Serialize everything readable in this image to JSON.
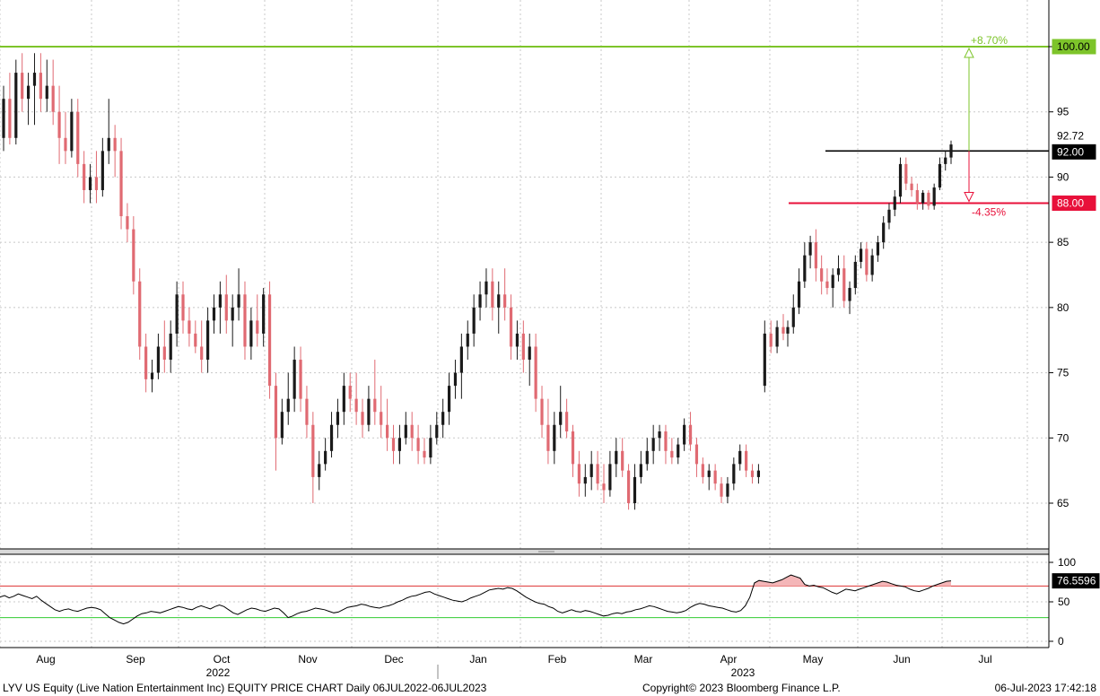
{
  "chart_data": {
    "type": "candlestick",
    "price_axis": {
      "ticks": [
        65,
        70,
        75,
        80,
        85,
        90,
        95,
        100
      ],
      "range": [
        61,
        104
      ]
    },
    "rsi_axis": {
      "ticks": [
        0,
        50,
        100
      ],
      "range": [
        -10,
        107
      ]
    },
    "months": [
      "Aug",
      "Sep",
      "Oct",
      "Nov",
      "Dec",
      "Jan",
      "Feb",
      "Mar",
      "Apr",
      "May",
      "Jun",
      "Jul"
    ],
    "years": [
      "2022",
      "2023"
    ],
    "levels": {
      "resistance": {
        "value": 100,
        "label": "100.00",
        "pct": "+8.70%",
        "color": "#7dc42a"
      },
      "black_line": {
        "value": 92,
        "label": "92.00",
        "color": "#000000"
      },
      "support": {
        "value": 88,
        "label": "88.00",
        "pct": "-4.35%",
        "color": "#e8103a"
      },
      "last_price_label": "92.72"
    },
    "rsi": {
      "last_label": "76.5596",
      "upper": 70,
      "lower": 30,
      "upper_color": "#d33",
      "lower_color": "#3c3"
    },
    "candles": [
      {
        "o": 93,
        "h": 97,
        "l": 92,
        "c": 96
      },
      {
        "o": 96,
        "h": 98,
        "l": 92.5,
        "c": 93
      },
      {
        "o": 93,
        "h": 99,
        "l": 92.5,
        "c": 98
      },
      {
        "o": 98,
        "h": 99.5,
        "l": 95,
        "c": 96
      },
      {
        "o": 96,
        "h": 98,
        "l": 94,
        "c": 97
      },
      {
        "o": 97,
        "h": 99.5,
        "l": 94,
        "c": 98
      },
      {
        "o": 98,
        "h": 99.5,
        "l": 95,
        "c": 96
      },
      {
        "o": 96,
        "h": 99,
        "l": 95,
        "c": 97
      },
      {
        "o": 97,
        "h": 99,
        "l": 94,
        "c": 95
      },
      {
        "o": 95,
        "h": 97,
        "l": 91,
        "c": 93
      },
      {
        "o": 93,
        "h": 95,
        "l": 91,
        "c": 92
      },
      {
        "o": 92,
        "h": 96,
        "l": 91.5,
        "c": 95
      },
      {
        "o": 95,
        "h": 96,
        "l": 90,
        "c": 91
      },
      {
        "o": 91,
        "h": 92,
        "l": 88,
        "c": 89
      },
      {
        "o": 89,
        "h": 91,
        "l": 88,
        "c": 90
      },
      {
        "o": 90,
        "h": 92,
        "l": 88,
        "c": 89
      },
      {
        "o": 89,
        "h": 93,
        "l": 88.5,
        "c": 92
      },
      {
        "o": 92,
        "h": 96,
        "l": 91,
        "c": 93
      },
      {
        "o": 93,
        "h": 94,
        "l": 90,
        "c": 92
      },
      {
        "o": 92,
        "h": 93,
        "l": 86,
        "c": 87
      },
      {
        "o": 87,
        "h": 88,
        "l": 85,
        "c": 86
      },
      {
        "o": 86,
        "h": 87,
        "l": 81,
        "c": 82
      },
      {
        "o": 82,
        "h": 83,
        "l": 76,
        "c": 77
      },
      {
        "o": 77,
        "h": 78,
        "l": 73.5,
        "c": 74.5
      },
      {
        "o": 74.5,
        "h": 76,
        "l": 73.5,
        "c": 75
      },
      {
        "o": 75,
        "h": 78,
        "l": 74.5,
        "c": 77
      },
      {
        "o": 77,
        "h": 79,
        "l": 75,
        "c": 76
      },
      {
        "o": 76,
        "h": 79,
        "l": 75,
        "c": 78
      },
      {
        "o": 78,
        "h": 82,
        "l": 77,
        "c": 81
      },
      {
        "o": 81,
        "h": 82,
        "l": 78,
        "c": 79
      },
      {
        "o": 79,
        "h": 80,
        "l": 77,
        "c": 78
      },
      {
        "o": 78,
        "h": 79,
        "l": 76.5,
        "c": 77
      },
      {
        "o": 77,
        "h": 79,
        "l": 75,
        "c": 76
      },
      {
        "o": 76,
        "h": 80,
        "l": 75,
        "c": 79
      },
      {
        "o": 79,
        "h": 81,
        "l": 78,
        "c": 80
      },
      {
        "o": 80,
        "h": 82,
        "l": 78,
        "c": 81
      },
      {
        "o": 81,
        "h": 82.5,
        "l": 78,
        "c": 79
      },
      {
        "o": 79,
        "h": 81,
        "l": 77,
        "c": 80
      },
      {
        "o": 80,
        "h": 83,
        "l": 79,
        "c": 81
      },
      {
        "o": 81,
        "h": 82,
        "l": 76,
        "c": 77
      },
      {
        "o": 77,
        "h": 80,
        "l": 76,
        "c": 79
      },
      {
        "o": 79,
        "h": 81,
        "l": 77,
        "c": 78
      },
      {
        "o": 78,
        "h": 81.5,
        "l": 77,
        "c": 81
      },
      {
        "o": 81,
        "h": 82,
        "l": 73,
        "c": 74
      },
      {
        "o": 74,
        "h": 75,
        "l": 67.5,
        "c": 70
      },
      {
        "o": 70,
        "h": 73,
        "l": 69.5,
        "c": 72
      },
      {
        "o": 72,
        "h": 75,
        "l": 71,
        "c": 73
      },
      {
        "o": 73,
        "h": 77,
        "l": 72,
        "c": 76
      },
      {
        "o": 76,
        "h": 77,
        "l": 72,
        "c": 73
      },
      {
        "o": 73,
        "h": 74,
        "l": 70,
        "c": 71
      },
      {
        "o": 71,
        "h": 72,
        "l": 65,
        "c": 67
      },
      {
        "o": 67,
        "h": 69,
        "l": 66,
        "c": 68
      },
      {
        "o": 68,
        "h": 70,
        "l": 67.5,
        "c": 69
      },
      {
        "o": 69,
        "h": 72,
        "l": 68.5,
        "c": 71
      },
      {
        "o": 71,
        "h": 73,
        "l": 70,
        "c": 72
      },
      {
        "o": 72,
        "h": 75,
        "l": 71,
        "c": 74
      },
      {
        "o": 74,
        "h": 75,
        "l": 72,
        "c": 73
      },
      {
        "o": 73,
        "h": 75,
        "l": 71,
        "c": 72
      },
      {
        "o": 72,
        "h": 73,
        "l": 70,
        "c": 71
      },
      {
        "o": 71,
        "h": 74,
        "l": 70.5,
        "c": 73
      },
      {
        "o": 73,
        "h": 76,
        "l": 71,
        "c": 72
      },
      {
        "o": 72,
        "h": 74,
        "l": 70,
        "c": 71
      },
      {
        "o": 71,
        "h": 73,
        "l": 69,
        "c": 70
      },
      {
        "o": 70,
        "h": 71,
        "l": 68,
        "c": 69
      },
      {
        "o": 69,
        "h": 71,
        "l": 68,
        "c": 70
      },
      {
        "o": 70,
        "h": 72,
        "l": 69.5,
        "c": 71
      },
      {
        "o": 71,
        "h": 72,
        "l": 69,
        "c": 70
      },
      {
        "o": 70,
        "h": 71,
        "l": 68,
        "c": 69
      },
      {
        "o": 69,
        "h": 70,
        "l": 68,
        "c": 68.5
      },
      {
        "o": 68.5,
        "h": 71,
        "l": 68,
        "c": 70
      },
      {
        "o": 70,
        "h": 72,
        "l": 69.5,
        "c": 71
      },
      {
        "o": 71,
        "h": 73,
        "l": 70,
        "c": 72
      },
      {
        "o": 72,
        "h": 75,
        "l": 71,
        "c": 74
      },
      {
        "o": 74,
        "h": 76,
        "l": 73,
        "c": 75
      },
      {
        "o": 75,
        "h": 78,
        "l": 73,
        "c": 77
      },
      {
        "o": 77,
        "h": 79,
        "l": 76,
        "c": 78
      },
      {
        "o": 78,
        "h": 81,
        "l": 77,
        "c": 80
      },
      {
        "o": 80,
        "h": 82,
        "l": 79,
        "c": 81
      },
      {
        "o": 81,
        "h": 83,
        "l": 80,
        "c": 82
      },
      {
        "o": 82,
        "h": 83,
        "l": 79,
        "c": 80
      },
      {
        "o": 80,
        "h": 82,
        "l": 78,
        "c": 81
      },
      {
        "o": 81,
        "h": 83,
        "l": 79,
        "c": 80
      },
      {
        "o": 80,
        "h": 81,
        "l": 76,
        "c": 77
      },
      {
        "o": 77,
        "h": 79,
        "l": 76,
        "c": 78
      },
      {
        "o": 78,
        "h": 79,
        "l": 75,
        "c": 76
      },
      {
        "o": 76,
        "h": 78,
        "l": 74,
        "c": 77
      },
      {
        "o": 77,
        "h": 78,
        "l": 72,
        "c": 73
      },
      {
        "o": 73,
        "h": 74,
        "l": 70,
        "c": 71
      },
      {
        "o": 71,
        "h": 73,
        "l": 68,
        "c": 69
      },
      {
        "o": 69,
        "h": 72,
        "l": 68,
        "c": 71
      },
      {
        "o": 71,
        "h": 74,
        "l": 70,
        "c": 72
      },
      {
        "o": 72,
        "h": 73,
        "l": 70,
        "c": 70.5
      },
      {
        "o": 70.5,
        "h": 71,
        "l": 67,
        "c": 68
      },
      {
        "o": 68,
        "h": 69,
        "l": 65.5,
        "c": 66.5
      },
      {
        "o": 66.5,
        "h": 68,
        "l": 65.5,
        "c": 67
      },
      {
        "o": 67,
        "h": 69,
        "l": 66,
        "c": 68
      },
      {
        "o": 68,
        "h": 69,
        "l": 66,
        "c": 66.5
      },
      {
        "o": 66.5,
        "h": 68,
        "l": 65,
        "c": 66
      },
      {
        "o": 66,
        "h": 69,
        "l": 65.5,
        "c": 68
      },
      {
        "o": 68,
        "h": 70,
        "l": 67,
        "c": 69
      },
      {
        "o": 69,
        "h": 70,
        "l": 67,
        "c": 67.5
      },
      {
        "o": 67.5,
        "h": 68,
        "l": 64.5,
        "c": 65
      },
      {
        "o": 65,
        "h": 68,
        "l": 64.5,
        "c": 67
      },
      {
        "o": 67,
        "h": 69,
        "l": 66.5,
        "c": 68
      },
      {
        "o": 68,
        "h": 70,
        "l": 67.5,
        "c": 69
      },
      {
        "o": 69,
        "h": 71,
        "l": 68,
        "c": 70
      },
      {
        "o": 70,
        "h": 71,
        "l": 69,
        "c": 70.5
      },
      {
        "o": 70.5,
        "h": 71,
        "l": 68,
        "c": 69
      },
      {
        "o": 69,
        "h": 70,
        "l": 68,
        "c": 68.5
      },
      {
        "o": 68.5,
        "h": 70,
        "l": 68,
        "c": 69.5
      },
      {
        "o": 69.5,
        "h": 71.5,
        "l": 69,
        "c": 71
      },
      {
        "o": 71,
        "h": 72,
        "l": 69,
        "c": 69.5
      },
      {
        "o": 69.5,
        "h": 70,
        "l": 67,
        "c": 68
      },
      {
        "o": 68,
        "h": 68.5,
        "l": 66.5,
        "c": 67
      },
      {
        "o": 67,
        "h": 68,
        "l": 66,
        "c": 67.5
      },
      {
        "o": 67.5,
        "h": 68,
        "l": 66,
        "c": 66.5
      },
      {
        "o": 66.5,
        "h": 67,
        "l": 65,
        "c": 65.5
      },
      {
        "o": 65.5,
        "h": 67,
        "l": 65,
        "c": 66.5
      },
      {
        "o": 66.5,
        "h": 68.5,
        "l": 66,
        "c": 68
      },
      {
        "o": 68,
        "h": 69.5,
        "l": 67.5,
        "c": 69
      },
      {
        "o": 69,
        "h": 69.5,
        "l": 67,
        "c": 67.5
      },
      {
        "o": 67.5,
        "h": 68,
        "l": 66.5,
        "c": 67
      },
      {
        "o": 67,
        "h": 68,
        "l": 66.5,
        "c": 67.5
      },
      {
        "o": 74,
        "h": 79,
        "l": 73.5,
        "c": 78
      },
      {
        "o": 78,
        "h": 79,
        "l": 76.5,
        "c": 77
      },
      {
        "o": 77,
        "h": 79,
        "l": 76.5,
        "c": 78.5
      },
      {
        "o": 78.5,
        "h": 79.5,
        "l": 77.5,
        "c": 78
      },
      {
        "o": 78,
        "h": 79,
        "l": 77,
        "c": 78.5
      },
      {
        "o": 78.5,
        "h": 81,
        "l": 78,
        "c": 80
      },
      {
        "o": 80,
        "h": 83,
        "l": 79.5,
        "c": 82
      },
      {
        "o": 82,
        "h": 85,
        "l": 81.5,
        "c": 84
      },
      {
        "o": 84,
        "h": 85.5,
        "l": 83,
        "c": 85
      },
      {
        "o": 85,
        "h": 86,
        "l": 82,
        "c": 83
      },
      {
        "o": 83,
        "h": 84,
        "l": 81,
        "c": 82
      },
      {
        "o": 82,
        "h": 83,
        "l": 81,
        "c": 81.5
      },
      {
        "o": 81.5,
        "h": 83,
        "l": 80,
        "c": 82.5
      },
      {
        "o": 82.5,
        "h": 84,
        "l": 82,
        "c": 83
      },
      {
        "o": 83,
        "h": 84,
        "l": 80,
        "c": 80.5
      },
      {
        "o": 80.5,
        "h": 82,
        "l": 79.5,
        "c": 81.5
      },
      {
        "o": 81.5,
        "h": 84,
        "l": 81,
        "c": 83.5
      },
      {
        "o": 83.5,
        "h": 85,
        "l": 83,
        "c": 84.5
      },
      {
        "o": 84.5,
        "h": 85,
        "l": 82,
        "c": 82.5
      },
      {
        "o": 82.5,
        "h": 84.5,
        "l": 82,
        "c": 84
      },
      {
        "o": 84,
        "h": 85.5,
        "l": 83.5,
        "c": 85
      },
      {
        "o": 85,
        "h": 87,
        "l": 84.5,
        "c": 86.5
      },
      {
        "o": 86.5,
        "h": 88,
        "l": 86,
        "c": 87.5
      },
      {
        "o": 87.5,
        "h": 89,
        "l": 87,
        "c": 88.5
      },
      {
        "o": 88.5,
        "h": 91.5,
        "l": 88,
        "c": 91
      },
      {
        "o": 91,
        "h": 91.5,
        "l": 89,
        "c": 89.5
      },
      {
        "o": 89.5,
        "h": 90,
        "l": 88.5,
        "c": 89
      },
      {
        "o": 89,
        "h": 89.5,
        "l": 87.5,
        "c": 88
      },
      {
        "o": 88,
        "h": 89,
        "l": 87.5,
        "c": 88.8
      },
      {
        "o": 88.8,
        "h": 89,
        "l": 87.5,
        "c": 87.8
      },
      {
        "o": 87.8,
        "h": 89.5,
        "l": 87.5,
        "c": 89.2
      },
      {
        "o": 89.2,
        "h": 91.5,
        "l": 89,
        "c": 91
      },
      {
        "o": 91,
        "h": 92,
        "l": 90.5,
        "c": 91.5
      },
      {
        "o": 91.5,
        "h": 92.8,
        "l": 91,
        "c": 92.5
      }
    ],
    "rsi_values": [
      56,
      58,
      55,
      57,
      60,
      58,
      56,
      54,
      57,
      52,
      48,
      44,
      40,
      38,
      40,
      41,
      39,
      38,
      40,
      42,
      43,
      42,
      40,
      35,
      30,
      27,
      24,
      22,
      24,
      28,
      32,
      35,
      36,
      38,
      37,
      36,
      38,
      40,
      42,
      44,
      43,
      41,
      40,
      43,
      45,
      43,
      41,
      44,
      46,
      44,
      40,
      36,
      34,
      37,
      40,
      42,
      41,
      39,
      38,
      40,
      42,
      41,
      36,
      30,
      32,
      35,
      37,
      38,
      40,
      42,
      41,
      40,
      38,
      36,
      37,
      40,
      43,
      44,
      45,
      47,
      46,
      44,
      43,
      42,
      44,
      45,
      47,
      50,
      52,
      55,
      57,
      58,
      60,
      62,
      63,
      60,
      58,
      56,
      54,
      52,
      51,
      50,
      52,
      55,
      57,
      59,
      62,
      65,
      66,
      67,
      66,
      68,
      67,
      64,
      60,
      56,
      53,
      50,
      48,
      47,
      44,
      42,
      38,
      36,
      38,
      40,
      38,
      37,
      39,
      38,
      36,
      34,
      32,
      33,
      35,
      36,
      35,
      37,
      38,
      40,
      41,
      43,
      45,
      44,
      42,
      40,
      38,
      37,
      36,
      37,
      39,
      43,
      46,
      48,
      47,
      45,
      44,
      43,
      42,
      40,
      38,
      37,
      39,
      45,
      56,
      74,
      77,
      76,
      75,
      74,
      76,
      78,
      81,
      84,
      82,
      80,
      72,
      70,
      71,
      69,
      68,
      65,
      62,
      60,
      63,
      66,
      65,
      64,
      66,
      68,
      70,
      72,
      74,
      76,
      75,
      73,
      71,
      70,
      69,
      66,
      64,
      63,
      65,
      67,
      70,
      72,
      74,
      76,
      76.6
    ]
  },
  "footer": {
    "left": "LYV US Equity (Live Nation Entertainment Inc) EQUITY PRICE CHART  Daily 06JUL2022-06JUL2023",
    "center": "Copyright© 2023 Bloomberg Finance L.P.",
    "right": "06-Jul-2023 17:42:18"
  }
}
